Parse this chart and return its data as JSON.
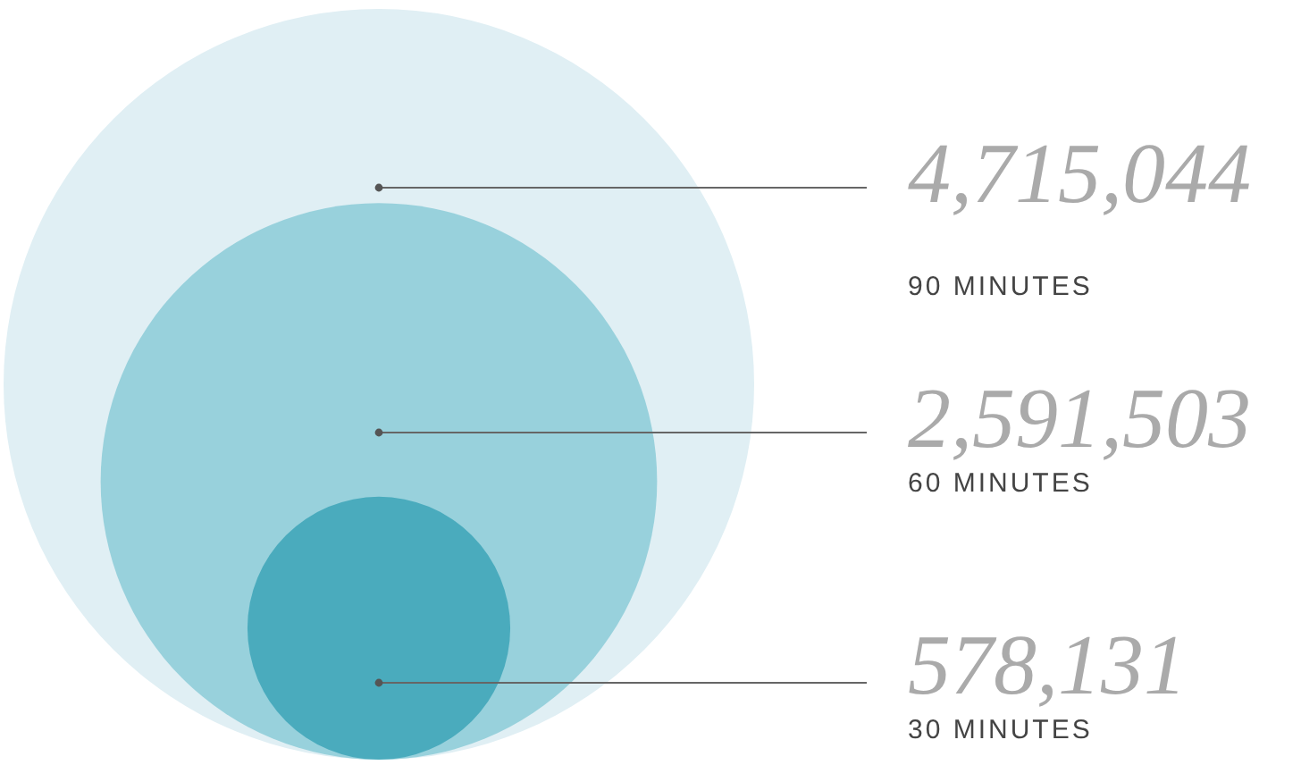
{
  "chart_data": {
    "type": "other",
    "categories": [
      "90 MINUTES",
      "60 MINUTES",
      "30 MINUTES"
    ],
    "values": [
      4715044,
      2591503,
      578131
    ],
    "value_labels": [
      "4,715,044",
      "2,591,503",
      "578,131"
    ],
    "colors": [
      "#e0eff4",
      "#98d1dc",
      "#4aabbd"
    ]
  }
}
